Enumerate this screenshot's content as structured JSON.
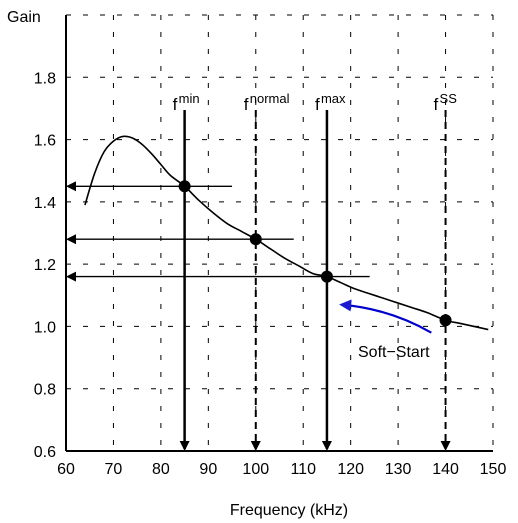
{
  "chart_data": {
    "type": "line",
    "title": "",
    "xlabel": "Frequency (kHz)",
    "ylabel": "Gain",
    "xlim": [
      60,
      150
    ],
    "ylim": [
      0.6,
      2.0
    ],
    "x_ticks": [
      60,
      70,
      80,
      90,
      100,
      110,
      120,
      130,
      140,
      150
    ],
    "y_ticks": [
      0.6,
      0.8,
      1.0,
      1.2,
      1.4,
      1.6,
      1.8
    ],
    "grid": "dashed",
    "series": [
      {
        "points": [
          [
            64,
            1.39
          ],
          [
            66,
            1.49
          ],
          [
            68,
            1.56
          ],
          [
            70,
            1.595
          ],
          [
            72,
            1.61
          ],
          [
            74,
            1.605
          ],
          [
            76,
            1.585
          ],
          [
            78,
            1.555
          ],
          [
            80,
            1.52
          ],
          [
            82,
            1.485
          ],
          [
            85,
            1.45
          ],
          [
            88,
            1.405
          ],
          [
            91,
            1.365
          ],
          [
            94,
            1.33
          ],
          [
            97,
            1.305
          ],
          [
            100,
            1.28
          ],
          [
            103,
            1.25
          ],
          [
            106,
            1.22
          ],
          [
            109,
            1.195
          ],
          [
            112,
            1.17
          ],
          [
            115,
            1.16
          ],
          [
            118,
            1.14
          ],
          [
            121,
            1.12
          ],
          [
            124,
            1.105
          ],
          [
            127,
            1.09
          ],
          [
            130,
            1.075
          ],
          [
            133,
            1.06
          ],
          [
            136,
            1.045
          ],
          [
            140,
            1.02
          ],
          [
            143,
            1.01
          ],
          [
            146,
            1.0
          ],
          [
            149,
            0.99
          ]
        ]
      }
    ],
    "operating_points": [
      {
        "label_main": "f",
        "label_sub": "min",
        "x": 85,
        "y": 1.45,
        "line_style": "solid",
        "gain_ref_x_end": 95
      },
      {
        "label_main": "f",
        "label_sub": "normal",
        "x": 100,
        "y": 1.28,
        "line_style": "dashed",
        "gain_ref_x_end": 108
      },
      {
        "label_main": "f",
        "label_sub": "max",
        "x": 115,
        "y": 1.16,
        "line_style": "solid",
        "gain_ref_x_end": 124
      },
      {
        "label_main": "f",
        "label_sub": "SS",
        "x": 140,
        "y": 1.02,
        "line_style": "dashed",
        "gain_ref_x_end": null
      }
    ],
    "annotations": [
      {
        "text": "Soft−Start",
        "color": "#0000cc",
        "arrow_from": [
          137,
          0.98
        ],
        "arrow_to": [
          118,
          1.07
        ]
      }
    ]
  }
}
